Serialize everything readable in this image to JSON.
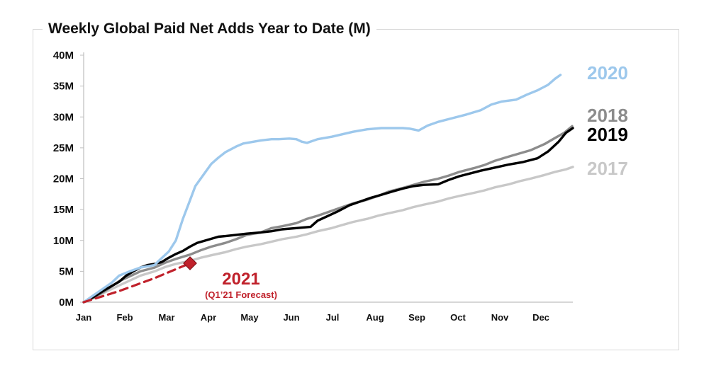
{
  "chart_data": {
    "type": "line",
    "title": "Weekly Global Paid Net Adds Year to Date (M)",
    "xlabel": "",
    "ylabel": "",
    "x_ticks": [
      "Jan",
      "Feb",
      "Mar",
      "Apr",
      "May",
      "Jun",
      "Jul",
      "Aug",
      "Sep",
      "Oct",
      "Nov",
      "Dec"
    ],
    "y_ticks": [
      "0M",
      "5M",
      "10M",
      "15M",
      "20M",
      "25M",
      "30M",
      "35M",
      "40M"
    ],
    "ylim": [
      0,
      40
    ],
    "xlim_months": [
      0,
      11.9
    ],
    "grid": false,
    "legend": "direct labels at right end of lines",
    "series": [
      {
        "name": "2020",
        "color": "#9DC8EC",
        "style": "solid",
        "points": [
          [
            0,
            0
          ],
          [
            0.2,
            0.8
          ],
          [
            0.5,
            2
          ],
          [
            0.8,
            3.2
          ],
          [
            1,
            4.3
          ],
          [
            1.3,
            5
          ],
          [
            1.6,
            5.6
          ],
          [
            2,
            6
          ],
          [
            2.1,
            6.6
          ],
          [
            2.4,
            8.2
          ],
          [
            2.6,
            10
          ],
          [
            2.8,
            13.5
          ],
          [
            3,
            16.5
          ],
          [
            3.15,
            18.8
          ],
          [
            3.4,
            20.8
          ],
          [
            3.6,
            22.4
          ],
          [
            3.8,
            23.4
          ],
          [
            4,
            24.3
          ],
          [
            4.3,
            25.2
          ],
          [
            4.5,
            25.7
          ],
          [
            4.8,
            26
          ],
          [
            5,
            26.2
          ],
          [
            5.3,
            26.4
          ],
          [
            5.5,
            26.4
          ],
          [
            5.8,
            26.5
          ],
          [
            6,
            26.4
          ],
          [
            6.15,
            26
          ],
          [
            6.3,
            25.8
          ],
          [
            6.6,
            26.4
          ],
          [
            7,
            26.8
          ],
          [
            7.3,
            27.2
          ],
          [
            7.6,
            27.6
          ],
          [
            8,
            28
          ],
          [
            8.4,
            28.2
          ],
          [
            8.8,
            28.2
          ],
          [
            9,
            28.2
          ],
          [
            9.2,
            28.1
          ],
          [
            9.45,
            27.8
          ],
          [
            9.7,
            28.6
          ],
          [
            10,
            29.2
          ],
          [
            10.4,
            29.8
          ],
          [
            10.8,
            30.4
          ],
          [
            11.2,
            31.1
          ],
          [
            11.5,
            32
          ],
          [
            11.8,
            32.5
          ],
          [
            12.2,
            32.8
          ],
          [
            12.5,
            33.6
          ],
          [
            12.8,
            34.3
          ],
          [
            13.1,
            35.2
          ],
          [
            13.3,
            36.2
          ],
          [
            13.45,
            36.8
          ]
        ]
      },
      {
        "name": "2018",
        "color": "#8C8C8C",
        "style": "solid",
        "points": [
          [
            0,
            0
          ],
          [
            0.3,
            0.8
          ],
          [
            0.6,
            1.8
          ],
          [
            1,
            3.4
          ],
          [
            1.3,
            4.2
          ],
          [
            1.6,
            5
          ],
          [
            2,
            5.6
          ],
          [
            2.3,
            6.4
          ],
          [
            2.6,
            7
          ],
          [
            3,
            7.7
          ],
          [
            3.3,
            8.4
          ],
          [
            3.6,
            9
          ],
          [
            4,
            9.6
          ],
          [
            4.3,
            10.2
          ],
          [
            4.6,
            10.9
          ],
          [
            5,
            11.3
          ],
          [
            5.3,
            12
          ],
          [
            5.6,
            12.3
          ],
          [
            6,
            12.8
          ],
          [
            6.3,
            13.5
          ],
          [
            6.6,
            14
          ],
          [
            7,
            14.8
          ],
          [
            7.3,
            15.4
          ],
          [
            7.6,
            16
          ],
          [
            8,
            16.6
          ],
          [
            8.3,
            17.2
          ],
          [
            8.6,
            17.9
          ],
          [
            9,
            18.5
          ],
          [
            9.3,
            19
          ],
          [
            9.6,
            19.5
          ],
          [
            10,
            20
          ],
          [
            10.3,
            20.5
          ],
          [
            10.6,
            21.1
          ],
          [
            11,
            21.7
          ],
          [
            11.3,
            22.2
          ],
          [
            11.6,
            22.9
          ],
          [
            12,
            23.6
          ],
          [
            12.3,
            24.1
          ],
          [
            12.6,
            24.6
          ],
          [
            13,
            25.6
          ],
          [
            13.3,
            26.6
          ],
          [
            13.55,
            27.4
          ],
          [
            13.78,
            28.5
          ]
        ]
      },
      {
        "name": "2019",
        "color": "#000000",
        "style": "solid",
        "points": [
          [
            0,
            0
          ],
          [
            0.3,
            0.9
          ],
          [
            0.6,
            2
          ],
          [
            1,
            3.3
          ],
          [
            1.2,
            4.3
          ],
          [
            1.4,
            5
          ],
          [
            1.6,
            5.6
          ],
          [
            1.8,
            6
          ],
          [
            2,
            6.2
          ],
          [
            2.2,
            6.5
          ],
          [
            2.4,
            7.2
          ],
          [
            2.6,
            7.8
          ],
          [
            2.8,
            8.3
          ],
          [
            3,
            9
          ],
          [
            3.2,
            9.6
          ],
          [
            3.5,
            10.1
          ],
          [
            3.8,
            10.6
          ],
          [
            4,
            10.7
          ],
          [
            4.3,
            10.9
          ],
          [
            4.6,
            11.1
          ],
          [
            5,
            11.3
          ],
          [
            5.3,
            11.5
          ],
          [
            5.6,
            11.8
          ],
          [
            6,
            12
          ],
          [
            6.2,
            12.1
          ],
          [
            6.4,
            12.2
          ],
          [
            6.6,
            13.2
          ],
          [
            6.9,
            14
          ],
          [
            7.2,
            14.8
          ],
          [
            7.5,
            15.7
          ],
          [
            7.8,
            16.3
          ],
          [
            8.1,
            16.9
          ],
          [
            8.4,
            17.4
          ],
          [
            8.7,
            17.9
          ],
          [
            9,
            18.4
          ],
          [
            9.3,
            18.8
          ],
          [
            9.6,
            19
          ],
          [
            10,
            19.1
          ],
          [
            10.3,
            19.8
          ],
          [
            10.6,
            20.4
          ],
          [
            11,
            21
          ],
          [
            11.2,
            21.3
          ],
          [
            11.6,
            21.8
          ],
          [
            12,
            22.3
          ],
          [
            12.4,
            22.7
          ],
          [
            12.8,
            23.3
          ],
          [
            13.1,
            24.4
          ],
          [
            13.4,
            26
          ],
          [
            13.6,
            27.4
          ],
          [
            13.8,
            28.2
          ]
        ]
      },
      {
        "name": "2017",
        "color": "#C8C8C8",
        "style": "solid",
        "points": [
          [
            0,
            0
          ],
          [
            0.3,
            0.7
          ],
          [
            0.6,
            1.6
          ],
          [
            1,
            2.7
          ],
          [
            1.3,
            3.5
          ],
          [
            1.6,
            4.3
          ],
          [
            2,
            5
          ],
          [
            2.3,
            5.7
          ],
          [
            2.6,
            6.2
          ],
          [
            3,
            6.7
          ],
          [
            3.3,
            7.2
          ],
          [
            3.6,
            7.6
          ],
          [
            4,
            8.1
          ],
          [
            4.3,
            8.6
          ],
          [
            4.6,
            9
          ],
          [
            5,
            9.4
          ],
          [
            5.3,
            9.8
          ],
          [
            5.6,
            10.2
          ],
          [
            6,
            10.6
          ],
          [
            6.3,
            11
          ],
          [
            6.6,
            11.5
          ],
          [
            7,
            12
          ],
          [
            7.3,
            12.5
          ],
          [
            7.6,
            13
          ],
          [
            8,
            13.5
          ],
          [
            8.3,
            14
          ],
          [
            8.6,
            14.4
          ],
          [
            9,
            14.9
          ],
          [
            9.3,
            15.4
          ],
          [
            9.6,
            15.8
          ],
          [
            10,
            16.3
          ],
          [
            10.3,
            16.8
          ],
          [
            10.6,
            17.2
          ],
          [
            11,
            17.7
          ],
          [
            11.3,
            18.1
          ],
          [
            11.6,
            18.6
          ],
          [
            12,
            19.1
          ],
          [
            12.3,
            19.6
          ],
          [
            12.6,
            20
          ],
          [
            13,
            20.6
          ],
          [
            13.3,
            21.1
          ],
          [
            13.6,
            21.5
          ],
          [
            13.8,
            21.9
          ]
        ]
      },
      {
        "name": "2021",
        "color": "#C0212B",
        "style": "dashed",
        "points": [
          [
            0,
            0
          ],
          [
            1,
            1.8
          ],
          [
            2,
            3.9
          ],
          [
            3,
            6.3
          ]
        ]
      }
    ],
    "annotations": [
      {
        "text": "2021",
        "color": "#C0212B"
      },
      {
        "text": "(Q1’21 Forecast)",
        "color": "#C0212B"
      }
    ]
  }
}
